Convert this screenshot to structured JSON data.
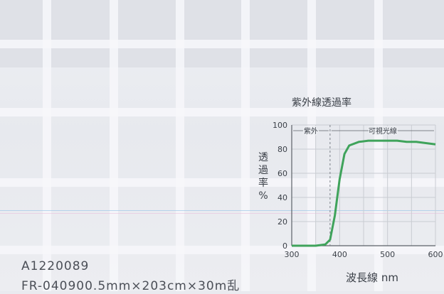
{
  "label": {
    "code_line": "A1220089",
    "spec_line": "FR-040900.5mm×203cm×30m乱"
  },
  "chart_data": {
    "type": "line",
    "title": "紫外線透過率",
    "xlabel": "波長線 nm",
    "ylabel": "透過率%",
    "x_ticks": [
      "300",
      "400",
      "500",
      "600"
    ],
    "y_ticks": [
      "0",
      "20",
      "40",
      "60",
      "80",
      "100"
    ],
    "xlim": [
      300,
      600
    ],
    "ylim": [
      0,
      100
    ],
    "grid": true,
    "annotations": [
      {
        "text": "紫外",
        "x_range": [
          300,
          380
        ]
      },
      {
        "text": "可視光線",
        "x_range": [
          380,
          600
        ]
      }
    ],
    "series": [
      {
        "color": "#3fa35b",
        "x": [
          300,
          350,
          370,
          380,
          390,
          400,
          410,
          420,
          440,
          460,
          480,
          500,
          520,
          540,
          560,
          580,
          600
        ],
        "y": [
          0,
          0,
          1,
          5,
          25,
          55,
          76,
          83,
          86,
          87,
          87,
          87,
          87,
          86,
          86,
          85,
          84
        ]
      }
    ]
  },
  "colors": {
    "mesh": "#f7f7fa",
    "axis": "#5c6168",
    "grid": "#c9ccd2",
    "dashed": "#7b8088",
    "curve": "#3fa35b"
  }
}
